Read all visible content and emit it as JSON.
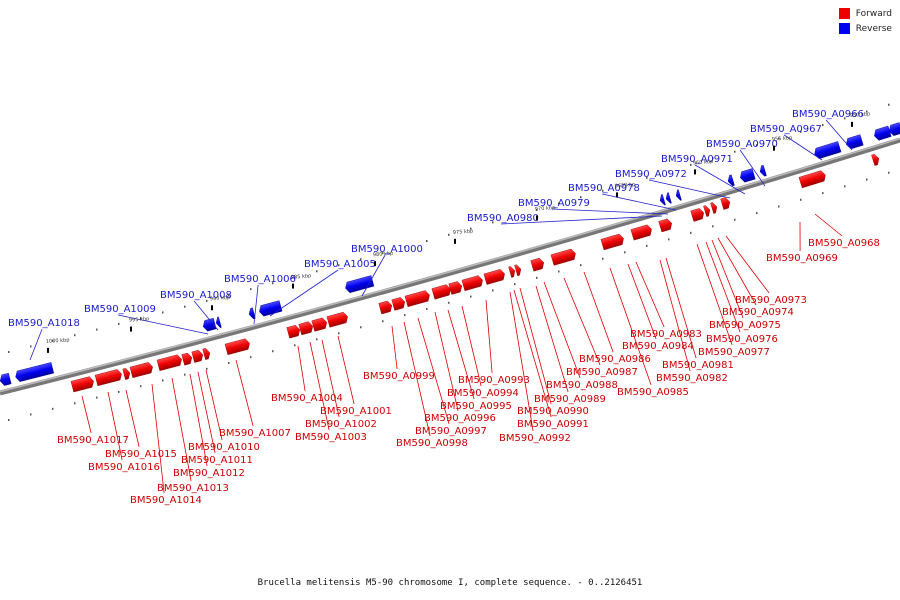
{
  "caption": "Brucella melitensis M5-90 chromosome I, complete sequence. - 0..2126451",
  "legend": [
    {
      "label": "Forward",
      "color": "#ee0000"
    },
    {
      "label": "Reverse",
      "color": "#0000ee"
    }
  ],
  "ticks": [
    "950 kbp",
    "955 kbp",
    "960 kbp",
    "965 kbp",
    "970 kbp",
    "975 kbp",
    "980 kbp",
    "985 kbp",
    "990 kbp",
    "995 kbp",
    "1000 kbp"
  ],
  "forward_genes": [
    "BM590_A0968",
    "BM590_A0969",
    "BM590_A0973",
    "BM590_A0974",
    "BM590_A0975",
    "BM590_A0976",
    "BM590_A0977",
    "BM590_A0981",
    "BM590_A0982",
    "BM590_A0983",
    "BM590_A0984",
    "BM590_A0985",
    "BM590_A0986",
    "BM590_A0987",
    "BM590_A0988",
    "BM590_A0989",
    "BM590_A0990",
    "BM590_A0991",
    "BM590_A0992",
    "BM590_A0993",
    "BM590_A0994",
    "BM590_A0995",
    "BM590_A0996",
    "BM590_A0997",
    "BM590_A0998",
    "BM590_A0999",
    "BM590_A1001",
    "BM590_A1002",
    "BM590_A1003",
    "BM590_A1004",
    "BM590_A1007",
    "BM590_A1010",
    "BM590_A1011",
    "BM590_A1012",
    "BM590_A1013",
    "BM590_A1014",
    "BM590_A1015",
    "BM590_A1016",
    "BM590_A1017"
  ],
  "reverse_genes": [
    "BM590_A0966",
    "BM590_A0967",
    "BM590_A0970",
    "BM590_A0971",
    "BM590_A0972",
    "BM590_A0978",
    "BM590_A0979",
    "BM590_A0980",
    "BM590_A1000",
    "BM590_A1005",
    "BM590_A1006",
    "BM590_A1008",
    "BM590_A1009",
    "BM590_A1018"
  ]
}
